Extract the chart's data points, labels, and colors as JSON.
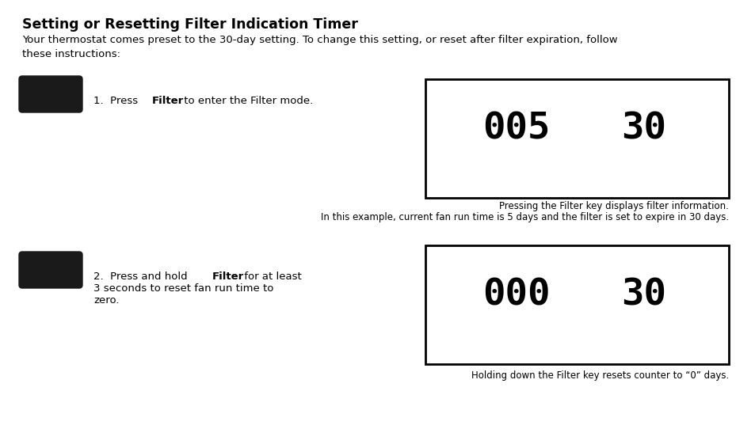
{
  "title": "Setting or Resetting Filter Indication Timer",
  "subtitle": "Your thermostat comes preset to the 30-day setting. To change this setting, or reset after filter expiration, follow\nthese instructions:",
  "caption1_line1": "Pressing the Filter key displays filter information.",
  "caption1_line2": "In this example, current fan run time is 5 days and the filter is set to expire in 30 days.",
  "caption2": "Holding down the Filter key resets counter to “0” days.",
  "display1_left": "005",
  "display1_right": "30",
  "display2_left": "000",
  "display2_right": "30",
  "background_color": "#ffffff",
  "text_color": "#000000",
  "button_color": "#1a1a1a",
  "title_fontsize": 12.5,
  "body_fontsize": 9.5,
  "caption_fontsize": 8.5,
  "display_fontsize": 34
}
